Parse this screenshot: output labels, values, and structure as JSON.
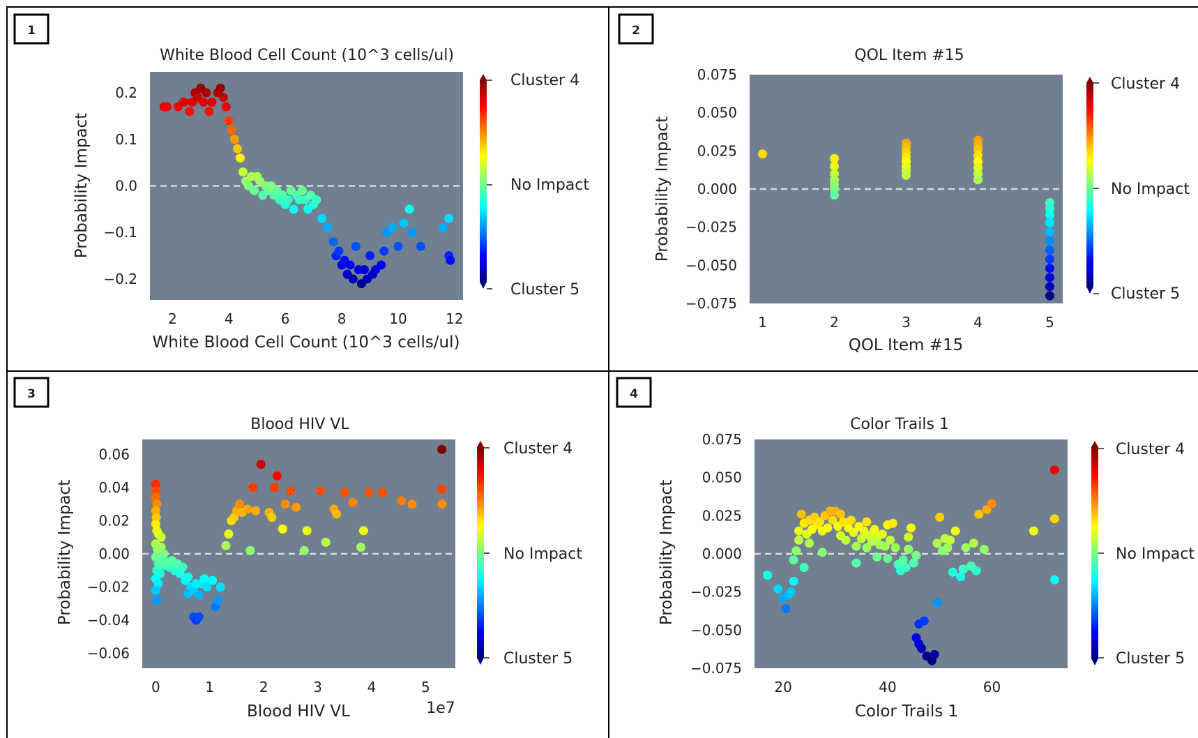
{
  "colors": {
    "plot_background": "#708090",
    "zero_line": "#d9d9d9",
    "panel_border": "#000000",
    "colormap": "jet"
  },
  "colorbar_labels": {
    "top": "Cluster 4",
    "middle": "No Impact",
    "bottom": "Cluster 5"
  },
  "chart_data": [
    {
      "panel_number": "1",
      "type": "scatter",
      "title": "White Blood Cell Count (10^3 cells/ul)",
      "xlabel": "White Blood Cell Count (10^3 cells/ul)",
      "ylabel": "Probability Impact",
      "xlim": [
        1.2,
        12.3
      ],
      "ylim": [
        -0.245,
        0.245
      ],
      "xticks": [
        2,
        4,
        6,
        8,
        10,
        12
      ],
      "yticks": [
        -0.2,
        -0.1,
        0.0,
        0.1,
        0.2
      ],
      "ytick_labels": [
        "−0.2",
        "−0.1",
        "0.0",
        "0.1",
        "0.2"
      ],
      "xtick_labels": [
        "2",
        "4",
        "6",
        "8",
        "10",
        "12"
      ],
      "color_range": [
        -0.22,
        0.22
      ],
      "reference_line_y": 0,
      "points": [
        [
          1.7,
          0.17
        ],
        [
          1.8,
          0.17
        ],
        [
          2.2,
          0.17
        ],
        [
          2.4,
          0.18
        ],
        [
          2.6,
          0.16
        ],
        [
          2.7,
          0.18
        ],
        [
          2.8,
          0.2
        ],
        [
          2.9,
          0.19
        ],
        [
          3.0,
          0.21
        ],
        [
          3.1,
          0.18
        ],
        [
          3.2,
          0.2
        ],
        [
          3.3,
          0.16
        ],
        [
          3.4,
          0.18
        ],
        [
          3.6,
          0.2
        ],
        [
          3.7,
          0.21
        ],
        [
          3.8,
          0.19
        ],
        [
          3.9,
          0.17
        ],
        [
          4.0,
          0.14
        ],
        [
          4.1,
          0.12
        ],
        [
          4.2,
          0.1
        ],
        [
          4.3,
          0.08
        ],
        [
          4.4,
          0.06
        ],
        [
          4.5,
          0.03
        ],
        [
          4.6,
          0.01
        ],
        [
          4.7,
          0.0
        ],
        [
          4.8,
          0.02
        ],
        [
          4.9,
          -0.01
        ],
        [
          5.0,
          0.02
        ],
        [
          5.1,
          0.01
        ],
        [
          5.2,
          -0.02
        ],
        [
          5.3,
          0.0
        ],
        [
          5.4,
          -0.01
        ],
        [
          5.5,
          0.0
        ],
        [
          5.6,
          -0.02
        ],
        [
          5.7,
          -0.01
        ],
        [
          5.8,
          -0.03
        ],
        [
          5.9,
          -0.02
        ],
        [
          6.0,
          -0.04
        ],
        [
          6.1,
          -0.03
        ],
        [
          6.2,
          -0.01
        ],
        [
          6.3,
          -0.05
        ],
        [
          6.4,
          -0.02
        ],
        [
          6.5,
          -0.03
        ],
        [
          6.6,
          -0.01
        ],
        [
          6.7,
          -0.03
        ],
        [
          6.8,
          -0.05
        ],
        [
          6.9,
          -0.02
        ],
        [
          7.0,
          -0.04
        ],
        [
          7.1,
          -0.03
        ],
        [
          7.3,
          -0.07
        ],
        [
          7.5,
          -0.09
        ],
        [
          7.7,
          -0.12
        ],
        [
          7.8,
          -0.15
        ],
        [
          7.9,
          -0.14
        ],
        [
          8.0,
          -0.17
        ],
        [
          8.1,
          -0.16
        ],
        [
          8.2,
          -0.19
        ],
        [
          8.3,
          -0.17
        ],
        [
          8.4,
          -0.2
        ],
        [
          8.5,
          -0.13
        ],
        [
          8.6,
          -0.18
        ],
        [
          8.7,
          -0.21
        ],
        [
          8.8,
          -0.18
        ],
        [
          8.9,
          -0.2
        ],
        [
          9.0,
          -0.15
        ],
        [
          9.1,
          -0.19
        ],
        [
          9.2,
          -0.18
        ],
        [
          9.4,
          -0.17
        ],
        [
          9.5,
          -0.14
        ],
        [
          9.6,
          -0.1
        ],
        [
          9.8,
          -0.09
        ],
        [
          10.0,
          -0.13
        ],
        [
          10.2,
          -0.08
        ],
        [
          10.4,
          -0.05
        ],
        [
          10.5,
          -0.1
        ],
        [
          10.8,
          -0.13
        ],
        [
          11.6,
          -0.09
        ],
        [
          11.8,
          -0.07
        ],
        [
          11.8,
          -0.15
        ],
        [
          11.85,
          -0.16
        ]
      ]
    },
    {
      "panel_number": "2",
      "type": "scatter",
      "title": "QOL Item #15",
      "xlabel": "QOL Item #15",
      "ylabel": "Probability Impact",
      "xlim": [
        0.82,
        5.18
      ],
      "ylim": [
        -0.075,
        0.075
      ],
      "xticks": [
        1,
        2,
        3,
        4,
        5
      ],
      "yticks": [
        -0.075,
        -0.05,
        -0.025,
        0.0,
        0.025,
        0.05,
        0.075
      ],
      "ytick_labels": [
        "−0.075",
        "−0.050",
        "−0.025",
        "0.000",
        "0.025",
        "0.050",
        "0.075"
      ],
      "xtick_labels": [
        "1",
        "2",
        "3",
        "4",
        "5"
      ],
      "color_range": [
        -0.072,
        0.072
      ],
      "reference_line_y": 0,
      "points": [
        [
          1,
          0.023
        ],
        [
          2,
          0.02
        ],
        [
          2,
          0.015
        ],
        [
          2,
          0.01
        ],
        [
          2,
          0.006
        ],
        [
          2,
          0.003
        ],
        [
          2,
          0.0
        ],
        [
          2,
          -0.004
        ],
        [
          3,
          0.03
        ],
        [
          3,
          0.027
        ],
        [
          3,
          0.024
        ],
        [
          3,
          0.021
        ],
        [
          3,
          0.018
        ],
        [
          3,
          0.015
        ],
        [
          3,
          0.012
        ],
        [
          3,
          0.009
        ],
        [
          4,
          0.032
        ],
        [
          4,
          0.029
        ],
        [
          4,
          0.026
        ],
        [
          4,
          0.022
        ],
        [
          4,
          0.018
        ],
        [
          4,
          0.014
        ],
        [
          4,
          0.01
        ],
        [
          4,
          0.006
        ],
        [
          5,
          -0.009
        ],
        [
          5,
          -0.013
        ],
        [
          5,
          -0.017
        ],
        [
          5,
          -0.022
        ],
        [
          5,
          -0.028
        ],
        [
          5,
          -0.034
        ],
        [
          5,
          -0.04
        ],
        [
          5,
          -0.046
        ],
        [
          5,
          -0.052
        ],
        [
          5,
          -0.058
        ],
        [
          5,
          -0.064
        ],
        [
          5,
          -0.07
        ]
      ]
    },
    {
      "panel_number": "3",
      "type": "scatter",
      "title": "Blood HIV VL",
      "xlabel": "Blood HIV VL",
      "ylabel": "Probability Impact",
      "x_scale_label": "1e7",
      "xlim": [
        -0.25,
        5.55
      ],
      "ylim": [
        -0.069,
        0.069
      ],
      "xticks": [
        0,
        1,
        2,
        3,
        4,
        5
      ],
      "yticks": [
        -0.06,
        -0.04,
        -0.02,
        0.0,
        0.02,
        0.04,
        0.06
      ],
      "ytick_labels": [
        "−0.06",
        "−0.04",
        "−0.02",
        "0.00",
        "0.02",
        "0.04",
        "0.06"
      ],
      "xtick_labels": [
        "0",
        "1",
        "2",
        "3",
        "4",
        "5"
      ],
      "color_range": [
        -0.063,
        0.063
      ],
      "reference_line_y": 0,
      "points": [
        [
          0.0,
          0.042
        ],
        [
          0.01,
          0.038
        ],
        [
          0.0,
          0.034
        ],
        [
          0.02,
          0.03
        ],
        [
          0.0,
          0.026
        ],
        [
          0.01,
          0.022
        ],
        [
          0.0,
          0.018
        ],
        [
          0.02,
          0.014
        ],
        [
          0.05,
          0.012
        ],
        [
          0.1,
          0.01
        ],
        [
          0.0,
          0.006
        ],
        [
          0.03,
          0.003
        ],
        [
          0.1,
          0.004
        ],
        [
          0.15,
          0.0
        ],
        [
          0.0,
          -0.002
        ],
        [
          0.05,
          -0.006
        ],
        [
          0.1,
          -0.003
        ],
        [
          0.15,
          -0.007
        ],
        [
          0.02,
          -0.01
        ],
        [
          0.08,
          -0.012
        ],
        [
          0.0,
          -0.015
        ],
        [
          0.05,
          -0.018
        ],
        [
          0.0,
          -0.022
        ],
        [
          0.02,
          -0.028
        ],
        [
          0.2,
          -0.005
        ],
        [
          0.25,
          -0.008
        ],
        [
          0.3,
          -0.004
        ],
        [
          0.35,
          -0.01
        ],
        [
          0.4,
          -0.006
        ],
        [
          0.45,
          -0.012
        ],
        [
          0.5,
          -0.008
        ],
        [
          0.55,
          -0.016
        ],
        [
          0.6,
          -0.014
        ],
        [
          0.65,
          -0.02
        ],
        [
          0.6,
          -0.024
        ],
        [
          0.7,
          -0.022
        ],
        [
          0.75,
          -0.018
        ],
        [
          0.8,
          -0.025
        ],
        [
          0.7,
          -0.038
        ],
        [
          0.75,
          -0.04
        ],
        [
          0.8,
          -0.038
        ],
        [
          0.85,
          -0.018
        ],
        [
          0.9,
          -0.015
        ],
        [
          0.95,
          -0.02
        ],
        [
          1.05,
          -0.016
        ],
        [
          1.1,
          -0.032
        ],
        [
          1.15,
          -0.028
        ],
        [
          1.2,
          -0.02
        ],
        [
          1.3,
          0.005
        ],
        [
          1.35,
          0.012
        ],
        [
          1.4,
          0.02
        ],
        [
          1.45,
          0.022
        ],
        [
          1.5,
          0.026
        ],
        [
          1.55,
          0.03
        ],
        [
          1.6,
          0.025
        ],
        [
          1.7,
          0.027
        ],
        [
          1.75,
          0.002
        ],
        [
          1.8,
          0.04
        ],
        [
          1.85,
          0.026
        ],
        [
          1.95,
          0.054
        ],
        [
          2.1,
          0.025
        ],
        [
          2.15,
          0.022
        ],
        [
          2.2,
          0.04
        ],
        [
          2.25,
          0.047
        ],
        [
          2.35,
          0.015
        ],
        [
          2.4,
          0.03
        ],
        [
          2.5,
          0.038
        ],
        [
          2.6,
          0.028
        ],
        [
          2.75,
          0.002
        ],
        [
          2.8,
          0.014
        ],
        [
          3.05,
          0.038
        ],
        [
          3.15,
          0.007
        ],
        [
          3.3,
          0.027
        ],
        [
          3.35,
          0.024
        ],
        [
          3.5,
          0.037
        ],
        [
          3.65,
          0.031
        ],
        [
          3.8,
          0.004
        ],
        [
          3.85,
          0.014
        ],
        [
          3.95,
          0.037
        ],
        [
          4.2,
          0.037
        ],
        [
          4.55,
          0.032
        ],
        [
          4.75,
          0.03
        ],
        [
          5.3,
          0.03
        ],
        [
          5.3,
          0.039
        ],
        [
          5.3,
          0.063
        ]
      ]
    },
    {
      "panel_number": "4",
      "type": "scatter",
      "title": "Color Trails 1",
      "xlabel": "Color Trails 1",
      "ylabel": "Probability Impact",
      "xlim": [
        14.5,
        74.5
      ],
      "ylim": [
        -0.075,
        0.075
      ],
      "xticks": [
        20,
        40,
        60
      ],
      "yticks": [
        -0.075,
        -0.05,
        -0.025,
        0.0,
        0.025,
        0.05,
        0.075
      ],
      "ytick_labels": [
        "−0.075",
        "−0.050",
        "−0.025",
        "0.000",
        "0.025",
        "0.050",
        "0.075"
      ],
      "xtick_labels": [
        "20",
        "40",
        "60"
      ],
      "color_range": [
        -0.07,
        0.07
      ],
      "reference_line_y": 0,
      "points": [
        [
          17,
          -0.014
        ],
        [
          19,
          -0.023
        ],
        [
          20,
          -0.029
        ],
        [
          20.5,
          -0.036
        ],
        [
          21,
          -0.027
        ],
        [
          21.5,
          -0.025
        ],
        [
          22,
          -0.018
        ],
        [
          22,
          -0.004
        ],
        [
          22.5,
          0.002
        ],
        [
          23,
          0.009
        ],
        [
          23,
          0.015
        ],
        [
          23.5,
          0.026
        ],
        [
          24,
          0.02
        ],
        [
          24,
          -0.009
        ],
        [
          24.5,
          0.013
        ],
        [
          25,
          0.007
        ],
        [
          25,
          0.022
        ],
        [
          25.5,
          0.016
        ],
        [
          26,
          0.024
        ],
        [
          26.5,
          0.019
        ],
        [
          27,
          0.021
        ],
        [
          27.5,
          0.015
        ],
        [
          27.5,
          0.001
        ],
        [
          28,
          0.025
        ],
        [
          28.5,
          0.017
        ],
        [
          29,
          0.028
        ],
        [
          29.5,
          0.022
        ],
        [
          30,
          0.028
        ],
        [
          30.5,
          0.018
        ],
        [
          31,
          0.012
        ],
        [
          31,
          0.026
        ],
        [
          31.5,
          0.021
        ],
        [
          32,
          0.009
        ],
        [
          32.5,
          0.017
        ],
        [
          33,
          0.022
        ],
        [
          33.5,
          0.014
        ],
        [
          34,
          0.005
        ],
        [
          34,
          -0.006
        ],
        [
          34.5,
          0.018
        ],
        [
          35,
          0.01
        ],
        [
          35.5,
          0.015
        ],
        [
          36,
          0.004
        ],
        [
          36,
          0.021
        ],
        [
          36.5,
          0.012
        ],
        [
          37,
          0.008
        ],
        [
          37.5,
          0.016
        ],
        [
          38,
          -0.002
        ],
        [
          38,
          0.011
        ],
        [
          38.5,
          0.006
        ],
        [
          39,
          0.013
        ],
        [
          39.5,
          0.005
        ],
        [
          40,
          0.019
        ],
        [
          40,
          -0.003
        ],
        [
          40.5,
          0.009
        ],
        [
          41,
          0.02
        ],
        [
          41.5,
          0.004
        ],
        [
          42,
          -0.007
        ],
        [
          42.5,
          -0.011
        ],
        [
          43,
          -0.004
        ],
        [
          43.5,
          -0.009
        ],
        [
          44,
          0.011
        ],
        [
          44,
          0.003
        ],
        [
          44.5,
          0.017
        ],
        [
          45,
          -0.006
        ],
        [
          45.5,
          -0.001
        ],
        [
          45.5,
          -0.055
        ],
        [
          46,
          -0.046
        ],
        [
          46,
          -0.059
        ],
        [
          46.5,
          -0.062
        ],
        [
          47,
          -0.044
        ],
        [
          47.5,
          -0.067
        ],
        [
          48.5,
          -0.07
        ],
        [
          49,
          -0.066
        ],
        [
          49.5,
          -0.032
        ],
        [
          49.5,
          0.007
        ],
        [
          50,
          0.024
        ],
        [
          50.5,
          0.002
        ],
        [
          51,
          0.01
        ],
        [
          51.5,
          0.004
        ],
        [
          52,
          0.009
        ],
        [
          52.5,
          -0.012
        ],
        [
          53,
          0.015
        ],
        [
          54,
          -0.015
        ],
        [
          54.5,
          -0.01
        ],
        [
          55,
          0.004
        ],
        [
          56,
          -0.008
        ],
        [
          56.5,
          0.007
        ],
        [
          57,
          -0.011
        ],
        [
          57.5,
          0.026
        ],
        [
          58.5,
          0.003
        ],
        [
          59,
          0.029
        ],
        [
          60,
          0.033
        ],
        [
          68,
          0.015
        ],
        [
          72,
          0.055
        ],
        [
          72,
          0.023
        ],
        [
          72,
          -0.017
        ]
      ]
    }
  ]
}
